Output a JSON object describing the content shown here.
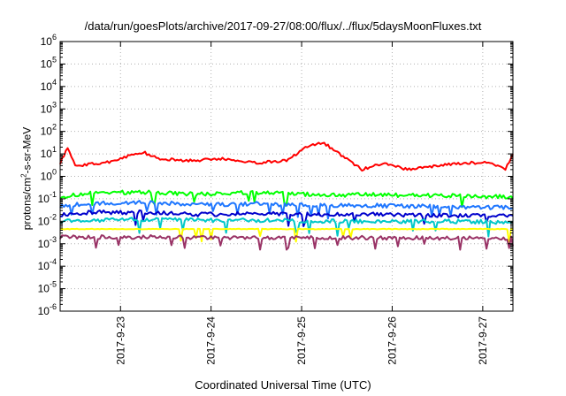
{
  "chart_data": {
    "type": "line",
    "title": "/data/run/goesPlots/archive/2017-09-27/08:00/flux/../flux/5daysMoonFluxes.txt",
    "xlabel": "Coordinated Universal Time (UTC)",
    "ylabel_prefix": "protons/cm",
    "ylabel_sup": "2",
    "ylabel_suffix": "-s-sr-MeV",
    "x_range": [
      "2017-09-22T08:00",
      "2017-09-27T08:00"
    ],
    "x_ticks": [
      "2017-9-23",
      "2017-9-24",
      "2017-9-25",
      "2017-9-26",
      "2017-9-27"
    ],
    "y_scale": "log",
    "ylim": [
      1e-06,
      1000000.0
    ],
    "y_ticks": [
      {
        "base": "10",
        "exp": "6"
      },
      {
        "base": "10",
        "exp": "5"
      },
      {
        "base": "10",
        "exp": "4"
      },
      {
        "base": "10",
        "exp": "3"
      },
      {
        "base": "10",
        "exp": "2"
      },
      {
        "base": "10",
        "exp": "1"
      },
      {
        "base": "10",
        "exp": "0"
      },
      {
        "base": "10",
        "exp": "-1"
      },
      {
        "base": "10",
        "exp": "-2"
      },
      {
        "base": "10",
        "exp": "-3"
      },
      {
        "base": "10",
        "exp": "-4"
      },
      {
        "base": "10",
        "exp": "-5"
      },
      {
        "base": "10",
        "exp": "-6"
      }
    ],
    "grid": true,
    "series": [
      {
        "color": "#00ff00",
        "knots": [
          [
            "2017-09-22T08:00",
            0.12
          ],
          [
            "2017-09-22T16:00",
            0.18
          ],
          [
            "2017-09-23T06:00",
            0.2
          ],
          [
            "2017-09-23T20:00",
            0.16
          ],
          [
            "2017-09-24T12:00",
            0.19
          ],
          [
            "2017-09-25T06:00",
            0.15
          ],
          [
            "2017-09-25T20:00",
            0.15
          ],
          [
            "2017-09-26T12:00",
            0.14
          ],
          [
            "2017-09-27T08:00",
            0.12
          ]
        ]
      },
      {
        "color": "#1f77ff",
        "knots": [
          [
            "2017-09-22T08:00",
            0.05
          ],
          [
            "2017-09-22T16:00",
            0.06
          ],
          [
            "2017-09-23T06:00",
            0.07
          ],
          [
            "2017-09-23T20:00",
            0.055
          ],
          [
            "2017-09-24T12:00",
            0.06
          ],
          [
            "2017-09-25T06:00",
            0.05
          ],
          [
            "2017-09-25T20:00",
            0.05
          ],
          [
            "2017-09-26T12:00",
            0.045
          ],
          [
            "2017-09-27T08:00",
            0.04
          ]
        ]
      },
      {
        "color": "#0000cc",
        "knots": [
          [
            "2017-09-22T08:00",
            0.02
          ],
          [
            "2017-09-22T16:00",
            0.025
          ],
          [
            "2017-09-23T06:00",
            0.025
          ],
          [
            "2017-09-23T20:00",
            0.02
          ],
          [
            "2017-09-24T12:00",
            0.022
          ],
          [
            "2017-09-25T06:00",
            0.02
          ],
          [
            "2017-09-25T20:00",
            0.02
          ],
          [
            "2017-09-26T12:00",
            0.018
          ],
          [
            "2017-09-27T08:00",
            0.017
          ]
        ]
      },
      {
        "color": "#00c8c8",
        "knots": [
          [
            "2017-09-22T08:00",
            0.01
          ],
          [
            "2017-09-22T16:00",
            0.011
          ],
          [
            "2017-09-23T06:00",
            0.012
          ],
          [
            "2017-09-23T20:00",
            0.011
          ],
          [
            "2017-09-24T12:00",
            0.011
          ],
          [
            "2017-09-25T06:00",
            0.01
          ],
          [
            "2017-09-25T20:00",
            0.01
          ],
          [
            "2017-09-26T12:00",
            0.01
          ],
          [
            "2017-09-27T08:00",
            0.009
          ]
        ]
      },
      {
        "color": "#ffff00",
        "knots": [
          [
            "2017-09-22T08:00",
            0.0045
          ],
          [
            "2017-09-23T08:00",
            0.0045
          ],
          [
            "2017-09-24T08:00",
            0.0045
          ],
          [
            "2017-09-25T08:00",
            0.0045
          ],
          [
            "2017-09-26T08:00",
            0.0045
          ],
          [
            "2017-09-27T08:00",
            0.0045
          ]
        ]
      },
      {
        "color": "#993366",
        "knots": [
          [
            "2017-09-22T08:00",
            0.002
          ],
          [
            "2017-09-23T08:00",
            0.002
          ],
          [
            "2017-09-24T08:00",
            0.0019
          ],
          [
            "2017-09-25T08:00",
            0.0019
          ],
          [
            "2017-09-26T08:00",
            0.0018
          ],
          [
            "2017-09-27T08:00",
            0.0018
          ]
        ]
      },
      {
        "color": "#ff0000",
        "knots": [
          [
            "2017-09-22T08:00",
            4
          ],
          [
            "2017-09-22T10:00",
            18
          ],
          [
            "2017-09-22T12:00",
            3
          ],
          [
            "2017-09-22T20:00",
            4
          ],
          [
            "2017-09-23T02:00",
            8
          ],
          [
            "2017-09-23T06:00",
            12
          ],
          [
            "2017-09-23T10:00",
            6
          ],
          [
            "2017-09-23T18:00",
            5
          ],
          [
            "2017-09-24T04:00",
            6
          ],
          [
            "2017-09-24T12:00",
            4
          ],
          [
            "2017-09-24T20:00",
            5
          ],
          [
            "2017-09-25T02:00",
            25
          ],
          [
            "2017-09-25T06:00",
            30
          ],
          [
            "2017-09-25T10:00",
            10
          ],
          [
            "2017-09-25T16:00",
            2
          ],
          [
            "2017-09-25T22:00",
            4
          ],
          [
            "2017-09-26T04:00",
            2
          ],
          [
            "2017-09-26T12:00",
            3
          ],
          [
            "2017-09-26T20:00",
            4
          ],
          [
            "2017-09-27T02:00",
            4
          ],
          [
            "2017-09-27T06:00",
            2
          ],
          [
            "2017-09-27T08:00",
            9
          ]
        ]
      }
    ]
  }
}
